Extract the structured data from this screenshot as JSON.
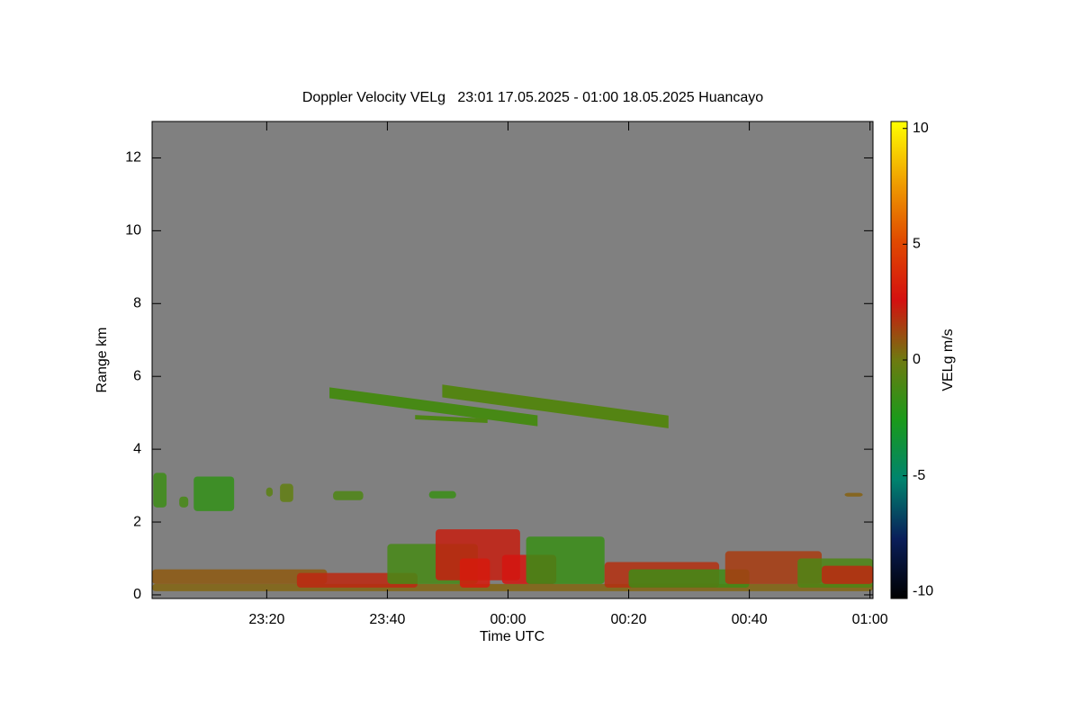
{
  "chart_data": {
    "type": "time-height",
    "title": "Doppler Velocity VELg   23:01 17.05.2025 - 01:00 18.05.2025 Huancayo",
    "xlabel": "Time UTC",
    "ylabel": "Range km",
    "colorbar_label": "VELg m/s",
    "xlim": [
      1,
      120.5
    ],
    "xticks": [
      {
        "value": 20,
        "label": "23:20"
      },
      {
        "value": 40,
        "label": "23:40"
      },
      {
        "value": 60,
        "label": "00:00"
      },
      {
        "value": 80,
        "label": "00:20"
      },
      {
        "value": 100,
        "label": "00:40"
      },
      {
        "value": 120,
        "label": "01:00"
      }
    ],
    "ylim": [
      -0.1,
      13
    ],
    "yticks": [
      0,
      2,
      4,
      6,
      8,
      10,
      12
    ],
    "clim": [
      -10.3,
      10.3
    ],
    "cticks": [
      -10,
      -5,
      0,
      5,
      10
    ],
    "colormap": [
      "#000000",
      "#0a1e5a",
      "#00846e",
      "#1a9a1a",
      "#6e7a10",
      "#d41010",
      "#e04a00",
      "#f0a000",
      "#ffff00"
    ],
    "background": "#808080",
    "layers": [
      {
        "t": [
          30.4,
          64.9
        ],
        "km": [
          5.55,
          4.78
        ],
        "thickness": 0.3,
        "velocity": -1.2
      },
      {
        "t": [
          49.1,
          86.6
        ],
        "km": [
          5.6,
          4.75
        ],
        "thickness": 0.35,
        "velocity": -0.8
      },
      {
        "t": [
          44.6,
          56.6
        ],
        "km": [
          4.88,
          4.78
        ],
        "thickness": 0.12,
        "velocity": -1.0
      }
    ],
    "patches": [
      {
        "t": [
          1.2,
          3.4
        ],
        "km": [
          2.4,
          3.35
        ],
        "velocity": -1.5
      },
      {
        "t": [
          7.9,
          14.6
        ],
        "km": [
          2.3,
          3.25
        ],
        "velocity": -1.8
      },
      {
        "t": [
          5.5,
          7.0
        ],
        "km": [
          2.4,
          2.7
        ],
        "velocity": -1.2
      },
      {
        "t": [
          19.9,
          21.0
        ],
        "km": [
          2.7,
          2.95
        ],
        "velocity": -0.6
      },
      {
        "t": [
          22.2,
          24.4
        ],
        "km": [
          2.55,
          3.05
        ],
        "velocity": -0.4
      },
      {
        "t": [
          31.0,
          36.0
        ],
        "km": [
          2.6,
          2.85
        ],
        "velocity": -1.0
      },
      {
        "t": [
          46.9,
          51.4
        ],
        "km": [
          2.65,
          2.85
        ],
        "velocity": -1.6
      },
      {
        "t": [
          115.8,
          118.8
        ],
        "km": [
          2.7,
          2.8
        ],
        "velocity": 0.6
      },
      {
        "t": [
          1.0,
          120.5
        ],
        "km": [
          0.1,
          0.3
        ],
        "velocity": 0.5
      },
      {
        "t": [
          1.0,
          30.0
        ],
        "km": [
          0.3,
          0.7
        ],
        "velocity": 0.8
      },
      {
        "t": [
          25.0,
          45.0
        ],
        "km": [
          0.2,
          0.6
        ],
        "velocity": 2.0
      },
      {
        "t": [
          40.0,
          55.0
        ],
        "km": [
          0.3,
          1.4
        ],
        "velocity": -1.2
      },
      {
        "t": [
          48.0,
          62.0
        ],
        "km": [
          0.4,
          1.8
        ],
        "velocity": 2.2
      },
      {
        "t": [
          52.0,
          57.0
        ],
        "km": [
          0.2,
          1.0
        ],
        "velocity": 3.0
      },
      {
        "t": [
          59.0,
          68.0
        ],
        "km": [
          0.3,
          1.1
        ],
        "velocity": 2.8
      },
      {
        "t": [
          63.0,
          76.0
        ],
        "km": [
          0.3,
          1.6
        ],
        "velocity": -1.6
      },
      {
        "t": [
          76.0,
          95.0
        ],
        "km": [
          0.2,
          0.9
        ],
        "velocity": 1.8
      },
      {
        "t": [
          80.0,
          100.0
        ],
        "km": [
          0.2,
          0.7
        ],
        "velocity": -1.4
      },
      {
        "t": [
          96.0,
          112.0
        ],
        "km": [
          0.3,
          1.2
        ],
        "velocity": 1.5
      },
      {
        "t": [
          108.0,
          120.5
        ],
        "km": [
          0.2,
          1.0
        ],
        "velocity": -1.0
      },
      {
        "t": [
          112.0,
          120.5
        ],
        "km": [
          0.3,
          0.8
        ],
        "velocity": 2.0
      }
    ]
  }
}
